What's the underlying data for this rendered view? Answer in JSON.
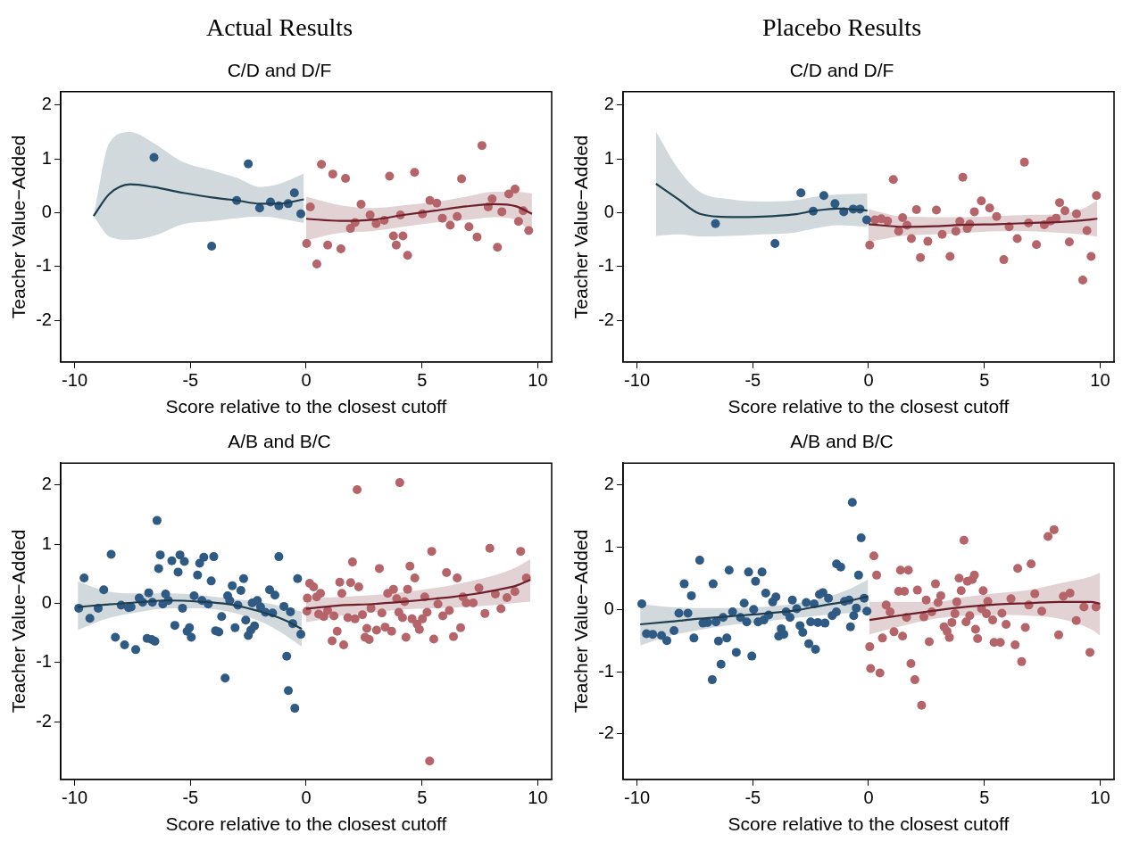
{
  "chart_data": [
    {
      "type": "scatter",
      "title": "Actual Results",
      "subtitle": "C/D and D/F",
      "xlabel": "Score relative to the closest cutoff",
      "ylabel": "Teacher Value−Added",
      "xlim": [
        -10.6,
        10.6
      ],
      "xticks": [
        -10,
        -5,
        0,
        5,
        10
      ],
      "ylim": [
        -2.77,
        2.25
      ],
      "yticks": [
        -2,
        -1,
        0,
        1,
        2
      ],
      "grid": false,
      "marker": "circle",
      "line_style": "solid",
      "series": [
        {
          "type": "line",
          "marker": "none",
          "color": "#1d3f4f",
          "x": [
            -9.18,
            -8.5,
            -7.6,
            -6.6,
            -5.3,
            -4,
            -3,
            -2,
            -1.2,
            -0.1
          ],
          "values": [
            -0.06,
            0.35,
            0.53,
            0.48,
            0.37,
            0.28,
            0.23,
            0.17,
            0.17,
            0.25
          ],
          "lower": [
            -0.06,
            -0.44,
            -0.5,
            -0.43,
            -0.21,
            -0.15,
            -0.1,
            -0.07,
            -0.1,
            -0.19
          ],
          "upper": [
            -0.06,
            1.3,
            1.5,
            1.3,
            0.94,
            0.78,
            0.65,
            0.48,
            0.53,
            0.73
          ]
        },
        {
          "type": "line",
          "marker": "none",
          "color": "#6e1f2a",
          "x": [
            0,
            1.5,
            2.85,
            4.2,
            5.56,
            6.91,
            8.13,
            9.07,
            9.75
          ],
          "values": [
            -0.11,
            -0.15,
            -0.13,
            -0.04,
            0.04,
            0.12,
            0.16,
            0.12,
            -0.02
          ],
          "lower": [
            -0.51,
            -0.37,
            -0.34,
            -0.26,
            -0.18,
            -0.13,
            -0.08,
            -0.13,
            -0.4
          ],
          "upper": [
            0.3,
            0.14,
            0.09,
            0.14,
            0.2,
            0.3,
            0.39,
            0.39,
            0.36
          ]
        },
        {
          "color": "#2e5a84",
          "x": [
            -6.57,
            -2.5,
            -4.08,
            -3.0,
            -2.01,
            -1.54,
            -1.18,
            -0.78,
            -0.51,
            -0.23
          ],
          "values": [
            1.03,
            0.91,
            -0.62,
            0.23,
            0.09,
            0.2,
            0.13,
            0.17,
            0.37,
            -0.02
          ]
        },
        {
          "color": "#b5646a",
          "x": [
            0.66,
            1.15,
            1.7,
            3.6,
            4.68,
            7.59,
            6.71,
            0.18,
            2.37,
            0.02,
            0.93,
            1.5,
            0.46,
            1.91,
            2.11,
            2.76,
            3.02,
            3.37,
            3.77,
            4.18,
            3.89,
            4.38,
            4.07,
            5.02,
            5.34,
            5.64,
            5.88,
            6.22,
            6.52,
            7.03,
            7.38,
            7.86,
            8.03,
            8.26,
            8.45,
            8.75,
            9.02,
            9.17,
            9.37,
            9.61
          ],
          "values": [
            0.9,
            0.72,
            0.64,
            0.68,
            0.75,
            1.25,
            0.63,
            0.11,
            0.16,
            -0.57,
            -0.6,
            -0.67,
            -0.95,
            -0.29,
            -0.18,
            -0.04,
            -0.2,
            -0.14,
            -0.43,
            -0.43,
            -0.6,
            -0.79,
            -0.04,
            -0.02,
            0.23,
            0.18,
            -0.1,
            -0.23,
            -0.07,
            -0.26,
            -0.45,
            0.11,
            0.26,
            -0.64,
            0.02,
            0.35,
            0.44,
            -0.16,
            0.04,
            -0.33
          ]
        }
      ]
    },
    {
      "type": "scatter",
      "title": "Placebo Results",
      "subtitle": "C/D and D/F",
      "xlabel": "Score relative to the closest cutoff",
      "ylabel": "Teacher Value−Added",
      "xlim": [
        -10.6,
        10.6
      ],
      "xticks": [
        -10,
        -5,
        0,
        5,
        10
      ],
      "ylim": [
        -2.77,
        2.25
      ],
      "yticks": [
        -2,
        -1,
        0,
        1,
        2
      ],
      "grid": false,
      "marker": "circle",
      "line_style": "solid",
      "series": [
        {
          "type": "line",
          "marker": "none",
          "color": "#1d3f4f",
          "x": [
            -9.18,
            -8.24,
            -7.29,
            -5.94,
            -4.58,
            -3.23,
            -2.29,
            -1.34,
            -0.05
          ],
          "values": [
            0.54,
            0.26,
            -0.02,
            -0.08,
            -0.07,
            -0.03,
            0.04,
            0.08,
            0.04
          ],
          "lower": [
            -0.43,
            -0.4,
            -0.44,
            -0.43,
            -0.4,
            -0.37,
            -0.29,
            -0.23,
            -0.26
          ],
          "upper": [
            1.51,
            0.83,
            0.39,
            0.25,
            0.21,
            0.23,
            0.3,
            0.34,
            0.36
          ]
        },
        {
          "type": "line",
          "marker": "none",
          "color": "#6e1f2a",
          "x": [
            0,
            1.5,
            2.85,
            4.2,
            5.56,
            6.91,
            8.26,
            9.21,
            9.88
          ],
          "values": [
            -0.21,
            -0.26,
            -0.25,
            -0.22,
            -0.21,
            -0.19,
            -0.17,
            -0.14,
            -0.11
          ],
          "lower": [
            -0.54,
            -0.43,
            -0.4,
            -0.37,
            -0.34,
            -0.34,
            -0.37,
            -0.4,
            -0.44
          ],
          "upper": [
            0.07,
            -0.07,
            -0.08,
            -0.08,
            -0.06,
            -0.04,
            -0.02,
            0.07,
            0.23
          ]
        },
        {
          "color": "#2e5a84",
          "x": [
            -6.61,
            -4.04,
            -2.92,
            -1.93,
            -2.39,
            -1.45,
            -1.07,
            -0.66,
            -0.37,
            -0.08
          ],
          "values": [
            -0.2,
            -0.57,
            0.37,
            0.32,
            0.03,
            0.17,
            0.02,
            0.07,
            0.07,
            -0.13
          ]
        },
        {
          "color": "#b5646a",
          "x": [
            0.05,
            1.07,
            4.07,
            6.73,
            9.84,
            0.28,
            0.55,
            0.82,
            1.47,
            1.66,
            1.3,
            1.85,
            2.07,
            2.24,
            2.56,
            2.93,
            3.18,
            3.52,
            3.77,
            3.94,
            4.26,
            4.37,
            4.57,
            4.87,
            5.23,
            5.53,
            5.84,
            6.07,
            6.42,
            6.91,
            7.25,
            7.59,
            7.86,
            8.1,
            8.25,
            8.48,
            8.67,
            8.98,
            9.25,
            9.43,
            9.61
          ],
          "values": [
            -0.6,
            0.62,
            0.66,
            0.94,
            0.32,
            -0.13,
            -0.11,
            -0.15,
            -0.09,
            -0.23,
            -0.34,
            -0.48,
            0.06,
            -0.83,
            -0.53,
            0.05,
            -0.4,
            -0.81,
            -0.34,
            -0.16,
            -0.29,
            -0.21,
            0.02,
            0.22,
            0.09,
            -0.07,
            -0.87,
            -0.26,
            -0.48,
            -0.19,
            -0.59,
            -0.22,
            -0.15,
            -0.1,
            0.19,
            0.04,
            -0.54,
            -0.02,
            -1.25,
            -0.33,
            -0.81
          ]
        }
      ]
    },
    {
      "type": "scatter",
      "title": "A/B and B/C",
      "xlabel": "Score relative to the closest cutoff",
      "ylabel": "Teacher Value−Added",
      "xlim": [
        -10.6,
        10.6
      ],
      "xticks": [
        -10,
        -5,
        0,
        5,
        10
      ],
      "ylim": [
        -2.97,
        2.37
      ],
      "yticks": [
        -2,
        -1,
        0,
        1,
        2
      ],
      "grid": false,
      "marker": "circle",
      "line_style": "solid",
      "series": [
        {
          "type": "line",
          "marker": "none",
          "color": "#1d3f4f",
          "x": [
            -9.86,
            -8.64,
            -7.29,
            -5.94,
            -4.58,
            -3.23,
            -1.88,
            -0.93,
            -0.19
          ],
          "values": [
            -0.06,
            -0.02,
            0.02,
            0.05,
            0.03,
            -0.02,
            -0.15,
            -0.28,
            -0.43
          ],
          "lower": [
            -0.45,
            -0.26,
            -0.15,
            -0.08,
            -0.08,
            -0.15,
            -0.32,
            -0.53,
            -0.73
          ],
          "upper": [
            0.37,
            0.21,
            0.17,
            0.17,
            0.14,
            0.08,
            0.02,
            -0.06,
            -0.14
          ]
        },
        {
          "type": "line",
          "marker": "none",
          "color": "#6e1f2a",
          "x": [
            0,
            1.5,
            2.85,
            4.2,
            5.56,
            6.91,
            8.26,
            9.07,
            9.68
          ],
          "values": [
            -0.09,
            -0.03,
            -0.01,
            0.03,
            0.08,
            0.14,
            0.23,
            0.3,
            0.4
          ],
          "lower": [
            -0.32,
            -0.21,
            -0.15,
            -0.1,
            -0.08,
            -0.06,
            -0.02,
            0.01,
            0.03
          ],
          "upper": [
            0.08,
            0.11,
            0.14,
            0.19,
            0.26,
            0.36,
            0.49,
            0.61,
            0.75
          ]
        },
        {
          "color": "#2e5a84",
          "x": [
            -9.82,
            -9.59,
            -9.34,
            -8.98,
            -8.74,
            -8.42,
            -8.24,
            -7.99,
            -7.84,
            -7.67,
            -7.56,
            -7.36,
            -7.21,
            -7.06,
            -6.87,
            -6.8,
            -6.67,
            -6.64,
            -6.53,
            -6.44,
            -6.37,
            -6.3,
            -6.19,
            -6.07,
            -5.95,
            -5.8,
            -5.67,
            -5.53,
            -5.45,
            -5.34,
            -5.26,
            -5.14,
            -5.04,
            -4.96,
            -4.84,
            -4.69,
            -4.6,
            -4.5,
            -4.42,
            -4.23,
            -4.1,
            -3.99,
            -3.91,
            -3.77,
            -3.65,
            -3.5,
            -3.39,
            -3.3,
            -3.19,
            -3.07,
            -2.95,
            -2.82,
            -2.7,
            -2.61,
            -2.5,
            -2.39,
            -2.33,
            -2.23,
            -2.11,
            -1.97,
            -1.76,
            -1.58,
            -1.45,
            -1.35,
            -1.18,
            -0.96,
            -0.84,
            -0.77,
            -0.68,
            -0.58,
            -0.49,
            -0.37,
            -0.23
          ],
          "values": [
            -0.08,
            0.43,
            -0.25,
            -0.08,
            0.23,
            0.83,
            -0.57,
            -0.03,
            -0.7,
            -0.07,
            -0.06,
            -0.78,
            0.09,
            0.02,
            -0.59,
            0.18,
            -0.61,
            0.02,
            -0.64,
            1.4,
            0.59,
            0.82,
            -0.01,
            0.16,
            0.05,
            0.72,
            -0.37,
            0.53,
            0.82,
            -0.08,
            0.71,
            -0.47,
            -0.41,
            -0.57,
            0.13,
            0.48,
            0.68,
            0.05,
            0.78,
            -0.01,
            0.38,
            0.79,
            -0.46,
            -0.48,
            -0.22,
            -1.26,
            0.13,
            0.05,
            0.3,
            -0.41,
            -0.03,
            0.22,
            0.42,
            -0.28,
            -0.54,
            -0.45,
            0.01,
            -0.38,
            0.05,
            -0.06,
            -0.15,
            0.23,
            -0.16,
            0.14,
            0.79,
            -0.05,
            -0.89,
            -1.47,
            -0.14,
            -0.34,
            -1.77,
            0.42,
            -0.52
          ]
        },
        {
          "color": "#b5646a",
          "x": [
            0.03,
            0.05,
            0.15,
            0.32,
            0.45,
            0.62,
            0.54,
            0.76,
            0.93,
            1.12,
            1.2,
            1.34,
            1.45,
            1.54,
            1.62,
            1.8,
            1.92,
            2.0,
            2.11,
            2.2,
            2.27,
            2.43,
            2.54,
            2.62,
            2.72,
            2.8,
            3.04,
            3.16,
            3.27,
            3.41,
            3.52,
            3.69,
            3.77,
            3.91,
            4.0,
            4.04,
            4.16,
            4.25,
            4.31,
            4.38,
            4.48,
            4.57,
            4.69,
            4.79,
            4.89,
            5.02,
            5.12,
            5.22,
            5.33,
            5.42,
            5.51,
            5.69,
            5.9,
            6.06,
            6.18,
            6.36,
            6.52,
            6.67,
            6.77,
            6.91,
            7.21,
            7.46,
            7.72,
            7.93,
            8.17,
            8.41,
            8.67,
            9.01,
            9.26,
            9.51
          ],
          "values": [
            -0.13,
            0.09,
            0.34,
            0.28,
            0.11,
            0.17,
            -0.18,
            -0.22,
            -0.12,
            -0.63,
            -0.21,
            -0.47,
            0.36,
            0.17,
            -0.7,
            -0.24,
            0.35,
            0.7,
            -0.26,
            1.92,
            0.28,
            -0.19,
            -0.57,
            -0.42,
            -0.61,
            -0.08,
            -0.45,
            0.59,
            -0.16,
            -0.4,
            0.17,
            -0.47,
            0.24,
            0.08,
            -0.15,
            2.04,
            -0.24,
            0.03,
            -0.57,
            0.24,
            0.63,
            -0.26,
            0.43,
            -0.35,
            -0.44,
            -0.26,
            0.11,
            -0.15,
            -2.66,
            0.88,
            -0.6,
            -0.01,
            -0.21,
            0.52,
            -0.12,
            -0.56,
            0.43,
            -0.41,
            0.11,
            0.01,
            0.01,
            0.26,
            -0.17,
            0.93,
            0.16,
            -0.09,
            0.1,
            0.2,
            0.88,
            0.43
          ]
        }
      ]
    },
    {
      "type": "scatter",
      "title": "A/B and B/C",
      "xlabel": "Score relative to the closest cutoff",
      "ylabel": "Teacher Value−Added",
      "xlim": [
        -10.6,
        10.6
      ],
      "xticks": [
        -10,
        -5,
        0,
        5,
        10
      ],
      "ylim": [
        -2.73,
        2.35
      ],
      "yticks": [
        -2,
        -1,
        0,
        1,
        2
      ],
      "grid": false,
      "marker": "circle",
      "line_style": "solid",
      "series": [
        {
          "type": "line",
          "marker": "none",
          "color": "#1d3f4f",
          "x": [
            -9.86,
            -8.64,
            -7.29,
            -5.94,
            -4.58,
            -3.23,
            -1.88,
            -0.93,
            -0.02
          ],
          "values": [
            -0.24,
            -0.2,
            -0.15,
            -0.11,
            -0.07,
            -0.02,
            0.07,
            0.13,
            0.21
          ],
          "lower": [
            -0.58,
            -0.43,
            -0.33,
            -0.25,
            -0.2,
            -0.14,
            -0.09,
            -0.06,
            -0.04
          ],
          "upper": [
            0.09,
            0.04,
            0.02,
            0.02,
            0.04,
            0.09,
            0.19,
            0.31,
            0.48
          ]
        },
        {
          "type": "line",
          "marker": "none",
          "color": "#6e1f2a",
          "x": [
            0.04,
            1.5,
            2.85,
            4.2,
            5.56,
            6.91,
            8.26,
            9.61,
            10
          ],
          "values": [
            -0.17,
            -0.09,
            -0.02,
            0.04,
            0.08,
            0.1,
            0.12,
            0.12,
            0.09
          ],
          "lower": [
            -0.4,
            -0.26,
            -0.15,
            -0.1,
            -0.09,
            -0.1,
            -0.15,
            -0.32,
            -0.42
          ],
          "upper": [
            0.12,
            0.12,
            0.12,
            0.2,
            0.26,
            0.31,
            0.42,
            0.53,
            0.59
          ]
        },
        {
          "color": "#2e5a84",
          "x": [
            -9.79,
            -9.59,
            -9.32,
            -8.94,
            -8.71,
            -8.4,
            -8.19,
            -7.96,
            -7.8,
            -7.65,
            -7.54,
            -7.29,
            -7.15,
            -6.95,
            -6.75,
            -6.71,
            -6.59,
            -6.48,
            -6.37,
            -6.28,
            -6.12,
            -6.02,
            -5.87,
            -5.71,
            -5.53,
            -5.37,
            -5.26,
            -5.18,
            -5.04,
            -4.96,
            -4.88,
            -4.77,
            -4.6,
            -4.52,
            -4.44,
            -4.31,
            -4.14,
            -4.0,
            -3.88,
            -3.77,
            -3.66,
            -3.56,
            -3.39,
            -3.29,
            -3.1,
            -2.96,
            -2.84,
            -2.69,
            -2.58,
            -2.5,
            -2.35,
            -2.29,
            -2.19,
            -2.12,
            -1.97,
            -1.88,
            -1.73,
            -1.57,
            -1.39,
            -1.38,
            -1.2,
            -1.04,
            -0.84,
            -0.78,
            -0.7,
            -0.64,
            -0.53,
            -0.43,
            -0.32,
            -0.19,
            -0.07
          ],
          "values": [
            0.09,
            -0.39,
            -0.4,
            -0.42,
            -0.5,
            -0.34,
            -0.06,
            0.41,
            -0.06,
            0.22,
            -0.46,
            0.79,
            -0.22,
            -0.21,
            -1.13,
            0.41,
            -0.2,
            -0.51,
            -0.88,
            -0.13,
            -0.46,
            0.63,
            -0.04,
            -0.69,
            -0.13,
            0.1,
            -0.2,
            0.6,
            -0.75,
            0.0,
            0.45,
            -0.2,
            0.6,
            -0.17,
            0.26,
            -0.09,
            0.12,
            0.2,
            -0.43,
            -0.31,
            -0.4,
            -0.04,
            -0.13,
            0.15,
            0.01,
            -0.26,
            -0.37,
            0.11,
            -0.55,
            -0.2,
            0.09,
            -0.64,
            -0.21,
            0.24,
            0.27,
            -0.22,
            0.18,
            -0.1,
            -0.04,
            0.73,
            0.68,
            0.13,
            0.15,
            -0.28,
            1.72,
            -0.1,
            0.02,
            0.55,
            1.15,
            0.18,
            -0.03
          ]
        },
        {
          "color": "#b5646a",
          "x": [
            0.05,
            0.09,
            0.23,
            0.35,
            0.49,
            0.6,
            0.76,
            0.93,
            1.1,
            1.3,
            1.38,
            1.47,
            1.55,
            1.64,
            1.72,
            1.83,
            2.0,
            2.11,
            2.29,
            2.39,
            2.49,
            2.62,
            2.73,
            2.89,
            3.0,
            3.12,
            3.26,
            3.39,
            3.49,
            3.6,
            3.73,
            3.81,
            3.91,
            4.0,
            4.12,
            4.21,
            4.27,
            4.37,
            4.48,
            4.57,
            4.62,
            4.71,
            4.88,
            4.95,
            5.09,
            5.15,
            5.36,
            5.42,
            5.69,
            5.76,
            5.94,
            6.15,
            6.33,
            6.44,
            6.61,
            6.77,
            6.92,
            7.02,
            7.18,
            7.48,
            7.75,
            8.01,
            8.21,
            8.41,
            8.7,
            8.97,
            9.3,
            9.56,
            9.82
          ],
          "values": [
            -0.6,
            -0.95,
            0.86,
            0.55,
            -1.02,
            -0.46,
            0.07,
            -0.04,
            -0.36,
            0.29,
            0.63,
            -0.43,
            0.29,
            -0.13,
            0.63,
            -0.87,
            -1.13,
            0.31,
            -1.54,
            -0.12,
            0.15,
            -0.52,
            -0.04,
            0.41,
            0.11,
            0.22,
            -0.28,
            -0.35,
            -0.45,
            -0.21,
            -0.07,
            0.12,
            0.5,
            0.3,
            1.11,
            -0.2,
            0.45,
            -0.1,
            0.48,
            0.55,
            -0.32,
            -0.47,
            0.01,
            0.3,
            -0.07,
            0.13,
            -0.17,
            -0.53,
            -0.53,
            -0.06,
            -0.24,
            0.17,
            -0.57,
            0.66,
            -0.84,
            -0.29,
            0.07,
            0.73,
            0.25,
            -0.03,
            1.17,
            1.28,
            -0.41,
            0.21,
            0.26,
            -0.18,
            0.04,
            -0.69,
            0.04
          ]
        }
      ]
    }
  ]
}
